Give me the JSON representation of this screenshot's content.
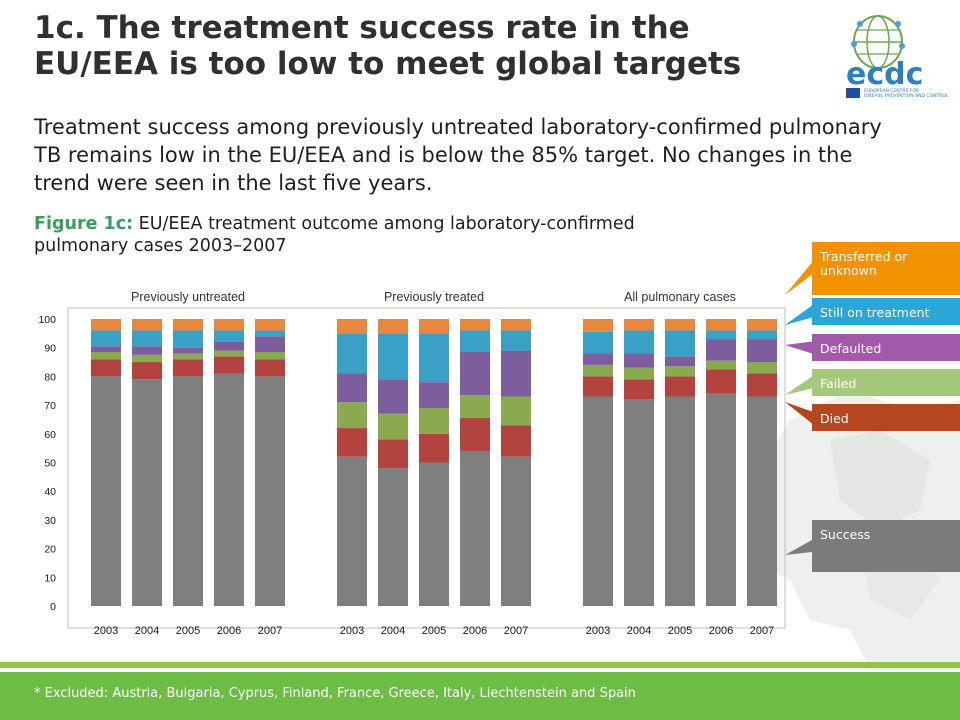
{
  "slide": {
    "title": "1c. The treatment success rate in the EU/EEA is too low to meet global targets",
    "subtitle": "Treatment success among previously untreated laboratory-confirmed pulmonary TB remains low in the EU/EEA and is below the 85% target. No changes in the trend were seen in the last five years.",
    "figure_label": "Figure 1c:",
    "figure_caption": " EU/EEA treatment outcome among laboratory-confirmed pulmonary cases 2003–2007",
    "footnote": "* Excluded: Austria, Bulgaria, Cyprus, Finland, France, Greece, Italy, Liechtenstein and Spain",
    "logo_text": "ecdc",
    "logo_tagline": "EUROPEAN CENTRE FOR DISEASE PREVENTION AND CONTROL"
  },
  "legend": [
    {
      "label": "Transferred or unknown",
      "color": "#f39200"
    },
    {
      "label": "Still on treatment",
      "color": "#2aa6d8"
    },
    {
      "label": "Defaulted",
      "color": "#a15aaa"
    },
    {
      "label": "Failed",
      "color": "#a5c97b"
    },
    {
      "label": "Died",
      "color": "#b5461f"
    },
    {
      "label": "Success",
      "color": "#7b7b7b"
    }
  ],
  "chart_data": {
    "type": "bar",
    "stacked": true,
    "ylim": [
      0,
      100
    ],
    "yticks": [
      0,
      10,
      20,
      30,
      40,
      50,
      60,
      70,
      80,
      90,
      100
    ],
    "outcome_order": [
      "Success",
      "Died",
      "Failed",
      "Defaulted",
      "Still on treatment",
      "Transferred or unknown"
    ],
    "series_colors": [
      "#7f7f7f",
      "#b2433f",
      "#8aaa4f",
      "#7d5e9c",
      "#3aa0c6",
      "#e8883f"
    ],
    "panels": [
      {
        "name": "Previously untreated",
        "categories": [
          "2003",
          "2004",
          "2005",
          "2006",
          "2007"
        ],
        "series": [
          {
            "name": "Success",
            "values": [
              80,
              79,
              80,
              81,
              80
            ]
          },
          {
            "name": "Died",
            "values": [
              6,
              6,
              6,
              6,
              6
            ]
          },
          {
            "name": "Failed",
            "values": [
              2.5,
              2.5,
              2,
              2,
              2.5
            ]
          },
          {
            "name": "Defaulted",
            "values": [
              2,
              3,
              2,
              3,
              5.5
            ]
          },
          {
            "name": "Still on treatment",
            "values": [
              5.5,
              5.5,
              6,
              4,
              2
            ]
          },
          {
            "name": "Transferred or unknown",
            "values": [
              4,
              4,
              4,
              4,
              4
            ]
          }
        ]
      },
      {
        "name": "Previously treated",
        "categories": [
          "2003",
          "2004",
          "2005",
          "2006",
          "2007"
        ],
        "series": [
          {
            "name": "Success",
            "values": [
              52,
              48,
              50,
              54,
              52
            ]
          },
          {
            "name": "Died",
            "values": [
              10,
              10,
              10,
              11.5,
              11
            ]
          },
          {
            "name": "Failed",
            "values": [
              9,
              9,
              9,
              8,
              10
            ]
          },
          {
            "name": "Defaulted",
            "values": [
              10,
              12,
              9,
              15,
              16
            ]
          },
          {
            "name": "Still on treatment",
            "values": [
              14,
              16,
              17,
              7.5,
              7
            ]
          },
          {
            "name": "Transferred or unknown",
            "values": [
              5,
              5,
              5,
              4,
              4
            ]
          }
        ]
      },
      {
        "name": "All pulmonary cases",
        "categories": [
          "2003",
          "2004",
          "2005",
          "2006",
          "2007"
        ],
        "series": [
          {
            "name": "Success",
            "values": [
              73,
              72,
              73,
              74,
              73
            ]
          },
          {
            "name": "Died",
            "values": [
              7,
              7,
              7,
              8.5,
              8
            ]
          },
          {
            "name": "Failed",
            "values": [
              4,
              4,
              3.5,
              3,
              4
            ]
          },
          {
            "name": "Defaulted",
            "values": [
              4,
              5,
              3.5,
              7.5,
              8
            ]
          },
          {
            "name": "Still on treatment",
            "values": [
              7.5,
              8,
              9,
              3,
              3
            ]
          },
          {
            "name": "Transferred or unknown",
            "values": [
              4.5,
              4,
              4,
              4,
              4
            ]
          }
        ]
      }
    ]
  }
}
